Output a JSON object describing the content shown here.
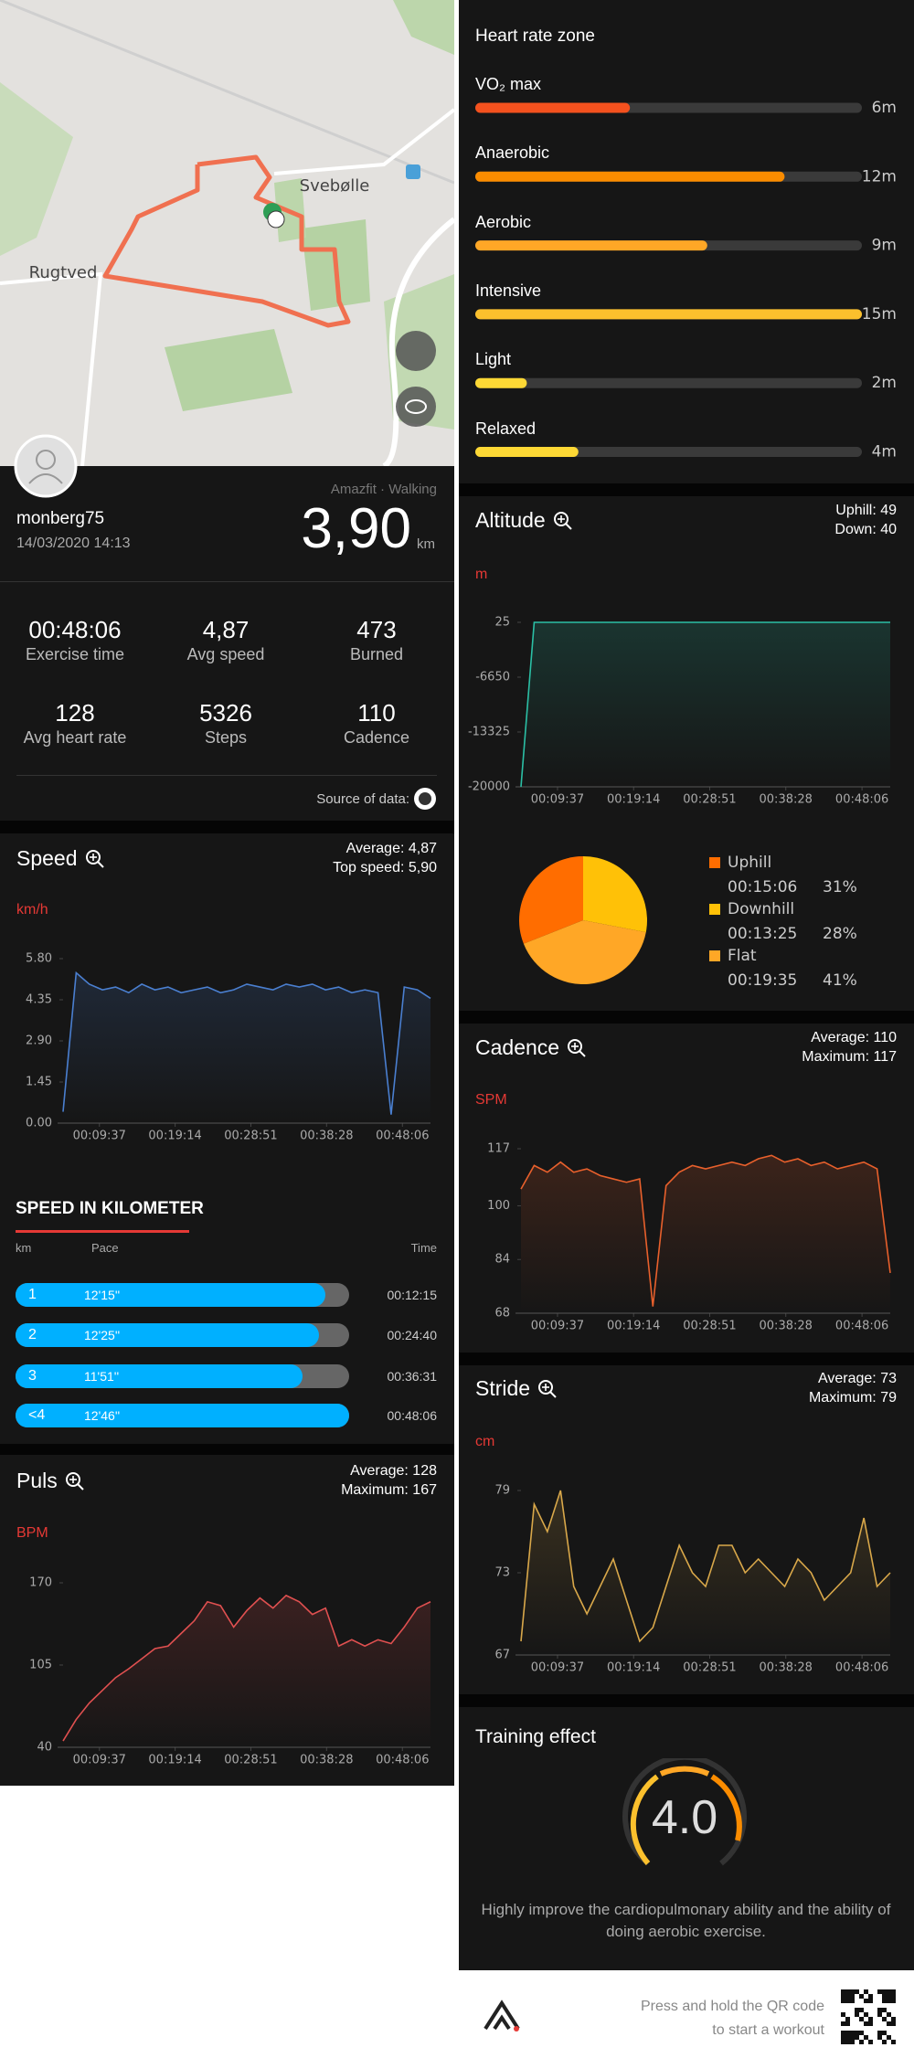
{
  "map": {
    "places": [
      "Svebølle",
      "Rugtved"
    ]
  },
  "profile": {
    "user": "monberg75",
    "datetime": "14/03/2020 14:13",
    "source": "Amazfit · Walking",
    "distance": "3,90",
    "distance_unit": "km"
  },
  "stats": [
    {
      "value": "00:48:06",
      "label": "Exercise time"
    },
    {
      "value": "4,87",
      "label": "Avg speed"
    },
    {
      "value": "473",
      "label": "Burned"
    },
    {
      "value": "128",
      "label": "Avg heart rate"
    },
    {
      "value": "5326",
      "label": "Steps"
    },
    {
      "value": "110",
      "label": "Cadence"
    }
  ],
  "source_label": "Source of data:",
  "time_axis": {
    "x": [
      300,
      400,
      500,
      600,
      700,
      800,
      900,
      1000,
      1100,
      1200,
      1300,
      1400,
      1500,
      1600,
      1700,
      1800,
      1900,
      2000,
      2100,
      2200,
      2300,
      2400,
      2500,
      2600,
      2700,
      2800,
      2900,
      3000,
      3100
    ],
    "xlim": [
      300,
      3100
    ],
    "xticks": [
      {
        "value": 577,
        "label": "00:09:37"
      },
      {
        "value": 1154,
        "label": "00:19:14"
      },
      {
        "value": 1731,
        "label": "00:28:51"
      },
      {
        "value": 2308,
        "label": "00:38:28"
      },
      {
        "value": 2886,
        "label": "00:48:06"
      }
    ]
  },
  "speed": {
    "type": "line",
    "title": "Speed",
    "summary": [
      "Average: 4,87",
      "Top speed: 5,90"
    ],
    "unit": "km/h",
    "color": "#4a7fd0",
    "ylim": [
      0,
      5.8
    ],
    "yticks": [
      {
        "value": 0,
        "label": "0.00"
      },
      1.45,
      {
        "value": 2.9,
        "label": "2.90"
      },
      4.35,
      {
        "value": 5.8,
        "label": "5.80"
      }
    ],
    "values": [
      0.4,
      5.3,
      4.9,
      4.7,
      4.8,
      4.6,
      4.9,
      4.7,
      4.8,
      4.6,
      4.7,
      4.8,
      4.6,
      4.7,
      4.9,
      4.8,
      4.7,
      4.9,
      4.8,
      4.9,
      4.7,
      4.8,
      4.6,
      4.7,
      4.6,
      0.3,
      4.8,
      4.7,
      4.4
    ]
  },
  "km_table": {
    "title": "SPEED IN KILOMETER",
    "headers": [
      "km",
      "Pace",
      "Time"
    ],
    "rows": [
      {
        "km": "1",
        "pace": "12'15''",
        "time": "00:12:15"
      },
      {
        "km": "2",
        "pace": "12'25''",
        "time": "00:24:40"
      },
      {
        "km": "3",
        "pace": "11'51''",
        "time": "00:36:31"
      },
      {
        "km": "<4",
        "pace": "12'46''",
        "time": "00:48:06"
      }
    ]
  },
  "puls": {
    "type": "line",
    "title": "Puls",
    "summary": [
      "Average: 128",
      "Maximum: 167"
    ],
    "unit": "BPM",
    "color": "#e05050",
    "ylim": [
      40,
      170
    ],
    "yticks": [
      40,
      105,
      170
    ],
    "values": [
      45,
      62,
      75,
      85,
      95,
      102,
      110,
      118,
      120,
      130,
      140,
      155,
      152,
      135,
      148,
      158,
      150,
      160,
      155,
      145,
      150,
      120,
      125,
      120,
      125,
      122,
      135,
      150,
      155
    ]
  },
  "hr_zone": {
    "title": "Heart rate zone",
    "zones": [
      {
        "name": "VO₂ max",
        "value": 6,
        "label": "6m",
        "color": "#f4511e"
      },
      {
        "name": "Anaerobic",
        "value": 12,
        "label": "12m",
        "color": "#fb8c00"
      },
      {
        "name": "Aerobic",
        "value": 9,
        "label": "9m",
        "color": "#ffa726"
      },
      {
        "name": "Intensive",
        "value": 15,
        "label": "15m",
        "color": "#fbc02d"
      },
      {
        "name": "Light",
        "value": 2,
        "label": "2m",
        "color": "#fdd835"
      },
      {
        "name": "Relaxed",
        "value": 4,
        "label": "4m",
        "color": "#fdd835"
      }
    ]
  },
  "altitude": {
    "type": "line",
    "title": "Altitude",
    "summary": [
      "Uphill: 49",
      "Down: 40"
    ],
    "unit": "m",
    "color": "#2bbfa5",
    "ylim": [
      -20000,
      25
    ],
    "yticks": [
      25,
      -6650,
      -13325,
      -20000
    ],
    "values": [
      -20000,
      25,
      25,
      25,
      25,
      25,
      25,
      25,
      25,
      25,
      25,
      25,
      25,
      25,
      25,
      25,
      25,
      25,
      25,
      25,
      25,
      25,
      25,
      25,
      25,
      25,
      25,
      25,
      25
    ]
  },
  "terrain": {
    "type": "pie",
    "names": [
      "Uphill",
      "Downhill",
      "Flat"
    ],
    "times": [
      "00:15:06",
      "00:13:25",
      "00:19:35"
    ],
    "values": [
      31,
      28,
      41
    ],
    "value_labels": [
      "31%",
      "28%",
      "41%"
    ],
    "colors": [
      "#ff6d00",
      "#ffc107",
      "#ffa726"
    ]
  },
  "cadence": {
    "type": "line",
    "title": "Cadence",
    "summary": [
      "Average: 110",
      "Maximum: 117"
    ],
    "unit": "SPM",
    "color": "#e8602c",
    "ylim": [
      68,
      117
    ],
    "yticks": [
      68,
      84,
      100,
      117
    ],
    "values": [
      105,
      112,
      110,
      113,
      110,
      111,
      109,
      108,
      107,
      108,
      70,
      106,
      110,
      112,
      111,
      112,
      113,
      112,
      114,
      115,
      113,
      114,
      112,
      113,
      111,
      112,
      113,
      111,
      80
    ]
  },
  "stride": {
    "type": "line",
    "title": "Stride",
    "summary": [
      "Average: 73",
      "Maximum: 79"
    ],
    "unit": "cm",
    "color": "#d9a84a",
    "ylim": [
      67,
      79
    ],
    "yticks": [
      67,
      73,
      79
    ],
    "values": [
      68,
      78,
      76,
      79,
      72,
      70,
      72,
      74,
      71,
      68,
      69,
      72,
      75,
      73,
      72,
      75,
      75,
      73,
      74,
      73,
      72,
      74,
      73,
      71,
      72,
      73,
      77,
      72,
      73
    ]
  },
  "training": {
    "title": "Training effect",
    "score": {
      "value": 4,
      "label": "4.0"
    },
    "description": "Highly improve the cardiopulmonary ability and the ability of doing aerobic exercise."
  },
  "footer": {
    "lines": [
      "Press and hold the QR code",
      "to start a workout"
    ]
  }
}
